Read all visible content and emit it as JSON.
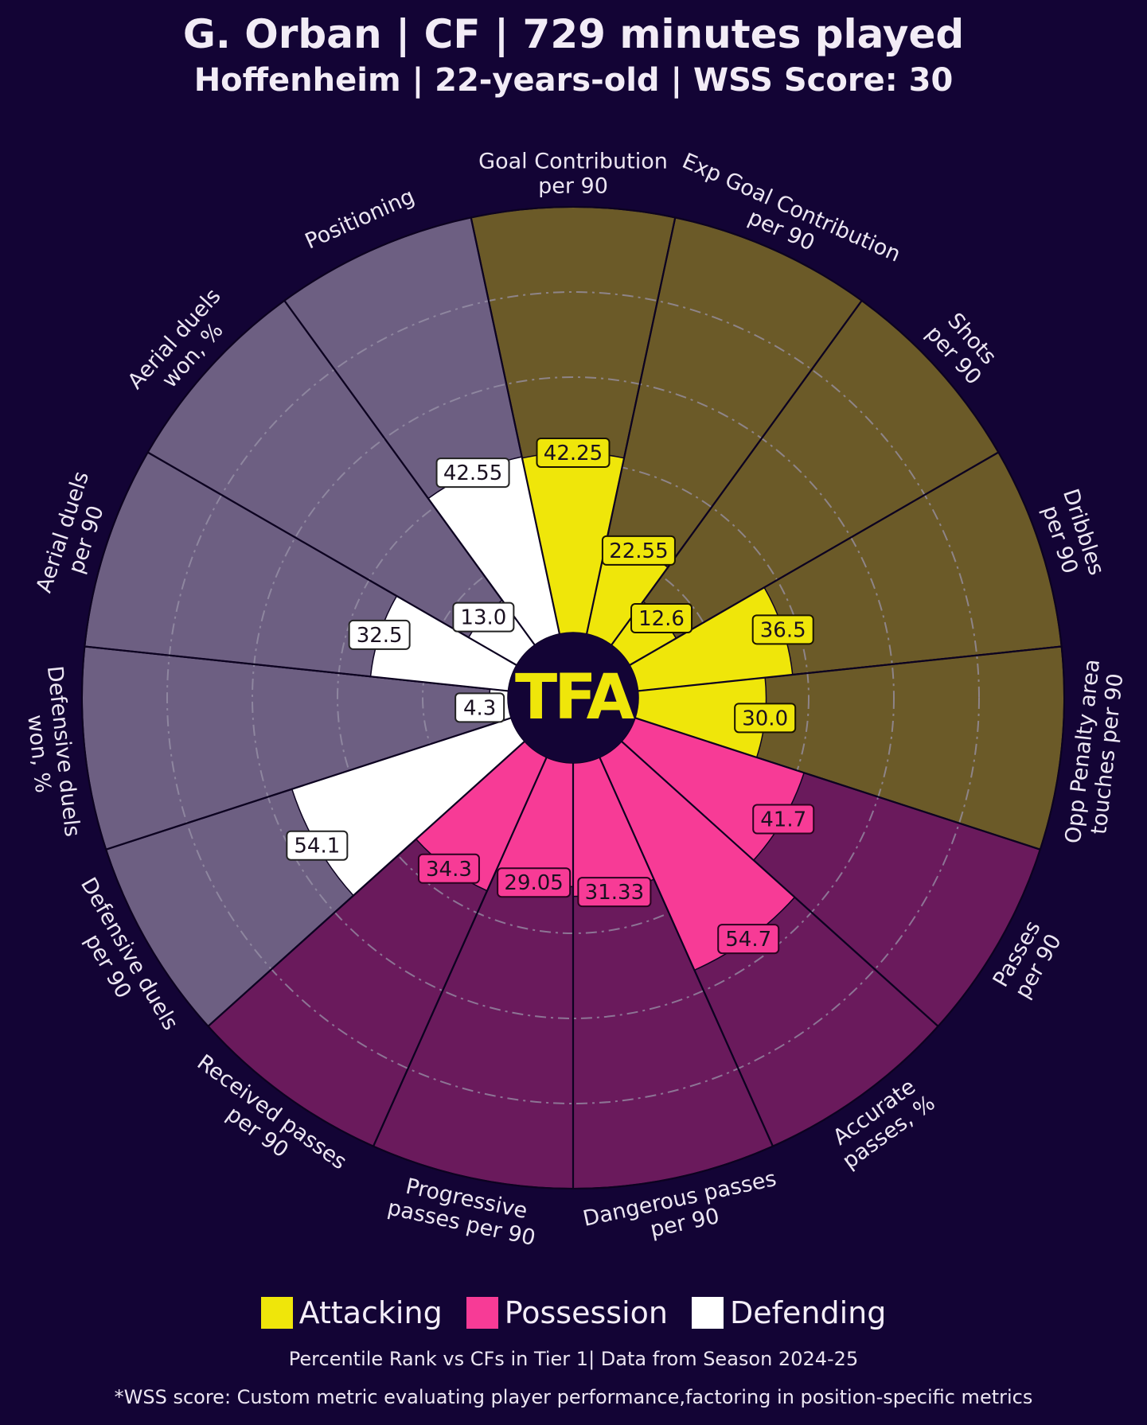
{
  "header": {
    "title": "G. Orban | CF | 729 minutes played",
    "subtitle": "Hoffenheim | 22-years-old | WSS Score: 30"
  },
  "logo_text": "TFA",
  "legend": [
    {
      "label": "Attacking",
      "color": "#efe60a"
    },
    {
      "label": "Possession",
      "color": "#f73b96"
    },
    {
      "label": "Defending",
      "color": "#ffffff"
    }
  ],
  "footer": {
    "line1": "Percentile Rank vs CFs in Tier 1| Data from Season 2024-25",
    "line2": "*WSS score: Custom metric evaluating player performance,factoring in position-specific metrics"
  },
  "colors": {
    "background": "#130435",
    "attacking_bg": "#6b5a28",
    "possession_bg": "#6a1a5c",
    "defending_bg": "#6d5f82",
    "attacking": "#efe60a",
    "possession": "#f73b96",
    "defending": "#ffffff"
  },
  "chart_data": {
    "type": "polar-bar",
    "title": "G. Orban | CF | 729 minutes played",
    "subtitle": "Hoffenheim | 22-years-old | WSS Score: 30",
    "rlim": [
      0,
      100
    ],
    "grid": true,
    "metrics": [
      {
        "label": "Goal Contribution\nper 90",
        "value": 42.25,
        "value_label": "42.25",
        "group": "Attacking"
      },
      {
        "label": "Exp Goal Contribution\nper 90",
        "value": 22.55,
        "value_label": "22.55",
        "group": "Attacking"
      },
      {
        "label": "Shots\nper 90",
        "value": 12.6,
        "value_label": "12.6",
        "group": "Attacking"
      },
      {
        "label": "Dribbles\nper 90",
        "value": 36.5,
        "value_label": "36.5",
        "group": "Attacking"
      },
      {
        "label": "Opp Penalty area\ntouches per 90",
        "value": 30.0,
        "value_label": "30.0",
        "group": "Attacking"
      },
      {
        "label": "Passes\nper 90",
        "value": 41.7,
        "value_label": "41.7",
        "group": "Possession"
      },
      {
        "label": "Accurate\npasses, %",
        "value": 54.7,
        "value_label": "54.7",
        "group": "Possession"
      },
      {
        "label": "Dangerous passes\nper 90",
        "value": 31.33,
        "value_label": "31.33",
        "group": "Possession"
      },
      {
        "label": "Progressive\npasses per 90",
        "value": 29.05,
        "value_label": "29.05",
        "group": "Possession"
      },
      {
        "label": "Received passes\nper 90",
        "value": 34.3,
        "value_label": "34.3",
        "group": "Possession"
      },
      {
        "label": "Defensive duels\nper 90",
        "value": 54.1,
        "value_label": "54.1",
        "group": "Defending"
      },
      {
        "label": "Defensive duels\nwon, %",
        "value": 4.3,
        "value_label": "4.3",
        "group": "Defending"
      },
      {
        "label": "Aerial duels\nper 90",
        "value": 32.5,
        "value_label": "32.5",
        "group": "Defending"
      },
      {
        "label": "Aerial duels\nwon, %",
        "value": 13.0,
        "value_label": "13.0",
        "group": "Defending"
      },
      {
        "label": "Positioning",
        "value": 42.55,
        "value_label": "42.55",
        "group": "Defending"
      }
    ],
    "legend": [
      "Attacking",
      "Possession",
      "Defending"
    ],
    "legend_position": "bottom"
  }
}
